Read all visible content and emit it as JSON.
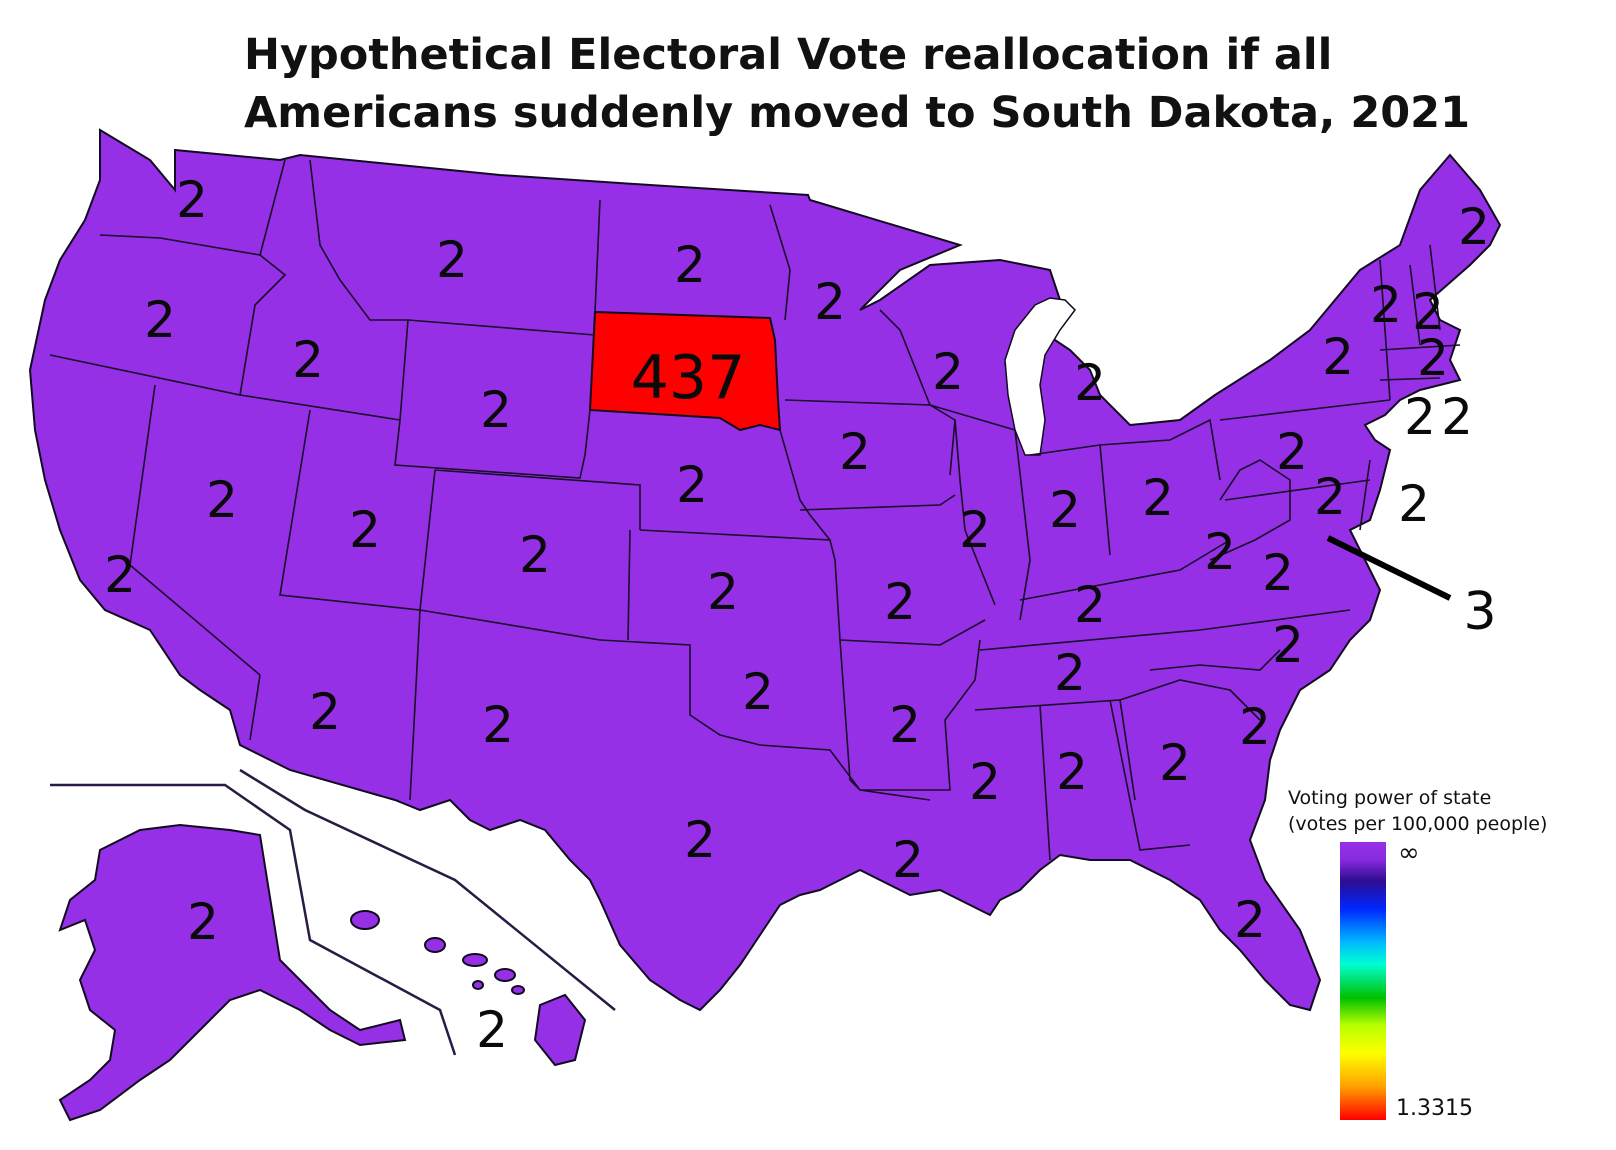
{
  "title": "Hypothetical Electoral Vote reallocation if all Americans suddenly moved to South Dakota, 2021",
  "colors": {
    "state_fill": "#9530e6",
    "south_dakota_fill": "#ff0000",
    "border": "#120a20"
  },
  "labels": {
    "washington": "2",
    "oregon": "2",
    "california": "2",
    "idaho": "2",
    "nevada": "2",
    "montana": "2",
    "wyoming": "2",
    "utah": "2",
    "arizona": "2",
    "colorado": "2",
    "new_mexico": "2",
    "north_dakota": "2",
    "south_dakota": "437",
    "nebraska": "2",
    "kansas": "2",
    "oklahoma": "2",
    "texas": "2",
    "minnesota": "2",
    "iowa": "2",
    "missouri": "2",
    "arkansas": "2",
    "louisiana": "2",
    "wisconsin": "2",
    "illinois": "2",
    "michigan": "2",
    "indiana": "2",
    "ohio": "2",
    "kentucky": "2",
    "tennessee": "2",
    "mississippi": "2",
    "alabama": "2",
    "georgia": "2",
    "florida": "2",
    "south_carolina": "2",
    "north_carolina": "2",
    "virginia": "2",
    "west_virginia": "2",
    "pennsylvania": "2",
    "new_york": "2",
    "maine": "2",
    "vermont": "2",
    "new_hampshire": "2",
    "massachusetts": "2",
    "rhode_island": "2",
    "connecticut": "2",
    "new_jersey": "2",
    "delaware": "2",
    "maryland": "2",
    "dc": "3",
    "alaska": "2",
    "hawaii": "2"
  },
  "legend": {
    "title_line1": "Voting power of state",
    "title_line2": "(votes per 100,000 people)",
    "max_label": "∞",
    "min_label": "1.3315"
  }
}
